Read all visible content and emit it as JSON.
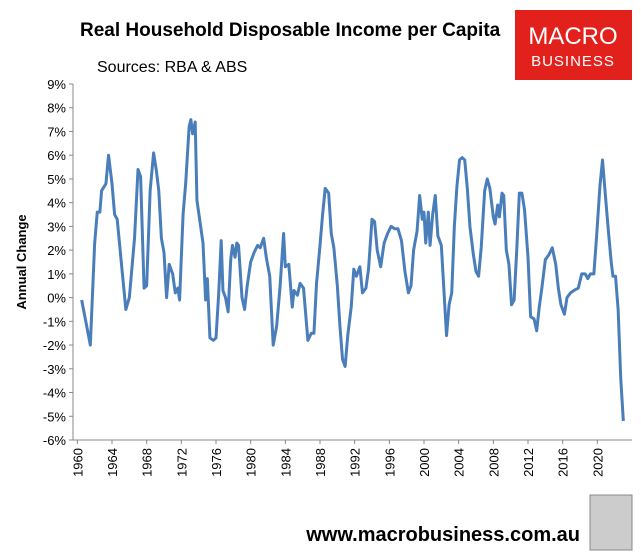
{
  "chart_data": {
    "type": "line",
    "title": "Real Household Disposable Income per Capita",
    "subtitle": "Sources: RBA & ABS",
    "ylabel": "Annual Change",
    "logo": [
      "MACRO",
      "BUSINESS"
    ],
    "footer": "www.macrobusiness.com.au",
    "xlim": [
      1959.5,
      2024
    ],
    "xticks": [
      1960,
      1964,
      1968,
      1972,
      1976,
      1980,
      1984,
      1988,
      1992,
      1996,
      2000,
      2004,
      2008,
      2012,
      2016,
      2020
    ],
    "ylim": [
      -6,
      9
    ],
    "yticks": [
      {
        "value": -6,
        "label": "-6%"
      },
      {
        "value": -5,
        "label": "-5%"
      },
      {
        "value": -4,
        "label": "-4%"
      },
      {
        "value": -3,
        "label": "-3%"
      },
      {
        "value": -2,
        "label": "-2%"
      },
      {
        "value": -1,
        "label": "-1%"
      },
      {
        "value": 0,
        "label": "0%"
      },
      {
        "value": 1,
        "label": "1%"
      },
      {
        "value": 2,
        "label": "2%"
      },
      {
        "value": 3,
        "label": "3%"
      },
      {
        "value": 4,
        "label": "4%"
      },
      {
        "value": 5,
        "label": "5%"
      },
      {
        "value": 6,
        "label": "6%"
      },
      {
        "value": 7,
        "label": "7%"
      },
      {
        "value": 8,
        "label": "8%"
      },
      {
        "value": 9,
        "label": "9%"
      }
    ],
    "grid": false,
    "color": "#4a7ebb",
    "x": [
      1960.5,
      1961.5,
      1962,
      1962.3,
      1962.6,
      1962.8,
      1963.3,
      1963.6,
      1964,
      1964.3,
      1964.6,
      1965.2,
      1965.6,
      1966,
      1966.6,
      1967,
      1967.3,
      1967.7,
      1968,
      1968.4,
      1968.8,
      1969.1,
      1969.4,
      1969.7,
      1970,
      1970.3,
      1970.6,
      1971,
      1971.3,
      1971.6,
      1971.8,
      1972.2,
      1972.5,
      1972.9,
      1973.1,
      1973.3,
      1973.6,
      1973.8,
      1974.5,
      1974.8,
      1975,
      1975.3,
      1975.7,
      1976,
      1976.3,
      1976.6,
      1976.8,
      1977.1,
      1977.4,
      1977.7,
      1977.9,
      1978.2,
      1978.4,
      1978.6,
      1979,
      1979.3,
      1979.6,
      1980,
      1980.4,
      1980.8,
      1981.1,
      1981.5,
      1981.8,
      1982.2,
      1982.6,
      1983,
      1983.4,
      1983.8,
      1984,
      1984.4,
      1984.8,
      1985,
      1985.4,
      1985.7,
      1986.1,
      1986.6,
      1987,
      1987.3,
      1987.6,
      1988,
      1988.3,
      1988.6,
      1989,
      1989.3,
      1989.6,
      1990,
      1990.3,
      1990.6,
      1990.9,
      1991.2,
      1991.6,
      1991.9,
      1992.2,
      1992.6,
      1992.9,
      1993.3,
      1993.6,
      1994,
      1994.3,
      1994.6,
      1995,
      1995.4,
      1995.8,
      1996.2,
      1996.6,
      1997,
      1997.4,
      1997.8,
      1998.2,
      1998.5,
      1998.8,
      1999.2,
      1999.5,
      1999.8,
      2000,
      2000.2,
      2000.5,
      2000.7,
      2001,
      2001.3,
      2001.6,
      2002,
      2002.3,
      2002.6,
      2002.9,
      2003.2,
      2003.5,
      2003.8,
      2004.1,
      2004.4,
      2004.7,
      2005,
      2005.3,
      2005.7,
      2006,
      2006.3,
      2006.6,
      2007,
      2007.3,
      2007.6,
      2008,
      2008.2,
      2008.5,
      2008.7,
      2009,
      2009.2,
      2009.5,
      2009.8,
      2010.1,
      2010.4,
      2010.7,
      2011,
      2011.3,
      2011.6,
      2012,
      2012.3,
      2012.7,
      2013,
      2013.3,
      2013.6,
      2014,
      2014.4,
      2014.8,
      2015.2,
      2015.5,
      2015.8,
      2016.2,
      2016.5,
      2016.9,
      2017.3,
      2017.8,
      2018.2,
      2018.6,
      2018.9,
      2019.2,
      2019.6,
      2019.9,
      2020.3,
      2020.6,
      2021,
      2021.3,
      2021.6,
      2021.8,
      2022.1,
      2022.4,
      2022.7,
      2023
    ],
    "series": [
      {
        "name": "Annual Change",
        "color": "#4a7ebb",
        "values": [
          -0.1,
          -2.0,
          2.3,
          3.6,
          3.6,
          4.5,
          4.8,
          6.0,
          4.8,
          3.5,
          3.3,
          1.0,
          -0.5,
          0,
          2.5,
          5.4,
          5.1,
          0.4,
          0.5,
          4.5,
          6.1,
          5.4,
          4.5,
          2.5,
          1.9,
          0,
          1.4,
          1.0,
          0.2,
          0.4,
          -0.1,
          3.5,
          4.8,
          7.2,
          7.5,
          6.9,
          7.4,
          4.1,
          2.3,
          -0.1,
          0.8,
          -1.7,
          -1.8,
          -1.7,
          0.1,
          2.4,
          0.3,
          0,
          -0.6,
          1.6,
          2.2,
          1.7,
          2.3,
          2.2,
          0,
          -0.5,
          0.5,
          1.5,
          1.9,
          2.2,
          2.1,
          2.5,
          1.7,
          0.9,
          -2.0,
          -1.2,
          0.5,
          2.7,
          1.3,
          1.4,
          -0.4,
          0.3,
          0.1,
          0.6,
          0.4,
          -1.8,
          -1.5,
          -1.5,
          0.6,
          2.2,
          3.5,
          4.6,
          4.4,
          2.7,
          2.1,
          0.5,
          -1.2,
          -2.6,
          -2.9,
          -1.6,
          -0.4,
          1.2,
          0.9,
          1.3,
          0.2,
          0.4,
          1.2,
          3.3,
          3.2,
          2.0,
          1.3,
          2.3,
          2.7,
          3.0,
          2.9,
          2.9,
          2.4,
          1.1,
          0.2,
          0.5,
          2.0,
          2.8,
          4.3,
          3.3,
          3.6,
          2.3,
          3.6,
          2.2,
          3.5,
          4.3,
          2.6,
          2.2,
          0.3,
          -1.6,
          -0.3,
          0.2,
          3.0,
          4.7,
          5.8,
          5.9,
          5.8,
          4.6,
          3.0,
          1.8,
          1.1,
          0.9,
          2.1,
          4.5,
          5.0,
          4.6,
          3.4,
          3.1,
          3.9,
          3.4,
          4.4,
          4.3,
          2.0,
          1.4,
          -0.3,
          -0.1,
          2.0,
          4.4,
          4.4,
          3.7,
          1.7,
          -0.8,
          -0.9,
          -1.4,
          -0.4,
          0.4,
          1.6,
          1.8,
          2.1,
          1.4,
          0.4,
          -0.3,
          -0.7,
          0,
          0.2,
          0.3,
          0.4,
          1.0,
          1.0,
          0.8,
          1.0,
          1.0,
          2.5,
          4.7,
          5.8,
          4.0,
          2.7,
          1.5,
          0.9,
          0.9,
          -0.5,
          -3.4,
          -5.2
        ]
      }
    ]
  }
}
